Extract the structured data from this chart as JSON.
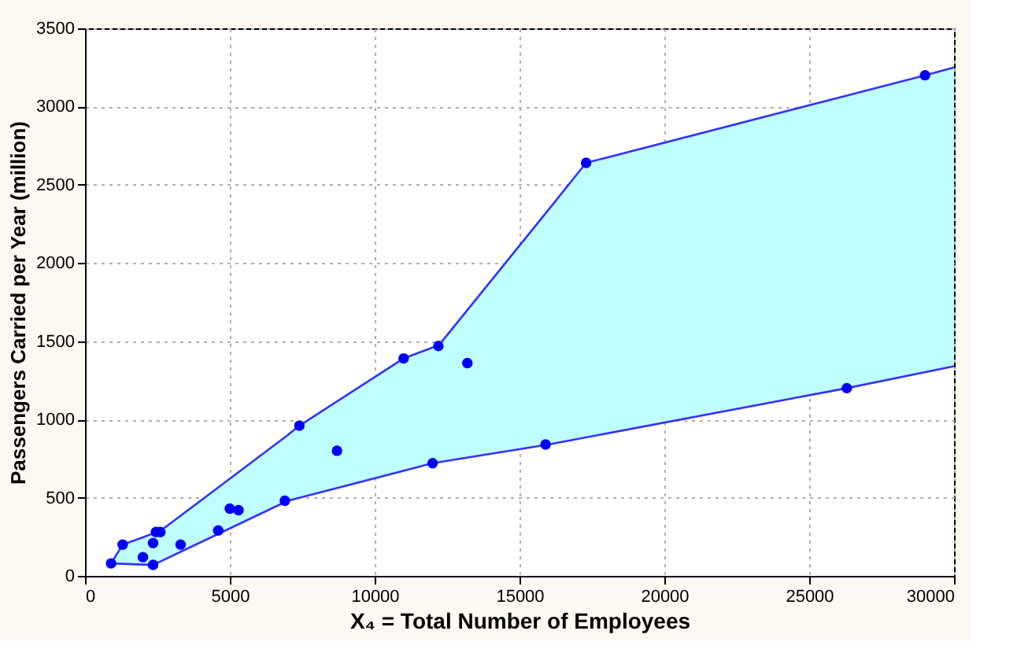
{
  "chart_data": {
    "type": "scatter",
    "xlabel": "X₄ = Total Number of Employees",
    "ylabel": "Passengers Carried per Year (million)",
    "xlim": [
      0,
      30000
    ],
    "xticks": [
      0,
      5000,
      10000,
      15000,
      20000,
      25000,
      30000
    ],
    "ylim": [
      0,
      3500
    ],
    "yticks": [
      0,
      500,
      1000,
      1500,
      2000,
      2500,
      3000,
      3500
    ],
    "grid": true,
    "line_style": "solid",
    "series": [
      {
        "type": "line",
        "color": "#3333ff",
        "marker": "none",
        "colors": [
          "#c0ffff",
          "#c0ffff",
          "#c0ffff",
          "#c0ffff",
          "#c0ffff",
          "#c0ffff",
          "#c0ffff",
          "#c0ffff",
          "#c0ffff",
          "#c0ffff",
          "#c0ffff",
          "#c0ffff",
          "#c0ffff",
          "#c0ffff"
        ],
        "x": [
          900,
          1300,
          2350,
          2550,
          7000,
          7400,
          11000,
          12000,
          12200,
          16000,
          17300,
          26300,
          29000,
          30000
        ],
        "values": [
          80,
          200,
          270,
          280,
          900,
          960,
          1390,
          1460,
          1470,
          2340,
          2640,
          3070,
          3200,
          3250
        ],
        "lower": [
          80,
          80,
          70,
          90,
          480,
          500,
          670,
          720,
          730,
          840,
          890,
          1200,
          1300,
          1340
        ],
        "upper": [
          80,
          200,
          270,
          280,
          900,
          960,
          1390,
          1460,
          1470,
          2340,
          2640,
          3070,
          3200,
          3250
        ]
      },
      {
        "type": "line",
        "color": "#3333ff",
        "marker": "none",
        "x": [
          900,
          2350,
          7000,
          12000,
          16000,
          26300,
          30000
        ],
        "values": [
          80,
          70,
          480,
          720,
          840,
          1200,
          1340
        ]
      },
      {
        "color": "#0000ff",
        "marker": "circle",
        "x": [
          900,
          1300,
          2000,
          2350,
          2350,
          2450,
          2600,
          3300,
          4600,
          5000,
          5300,
          6900,
          7400,
          8700,
          11000,
          12200,
          12000,
          13200,
          15900,
          17300,
          26300,
          29000
        ],
        "values": [
          80,
          200,
          120,
          70,
          210,
          280,
          280,
          200,
          290,
          430,
          420,
          480,
          960,
          800,
          1390,
          1470,
          720,
          1360,
          840,
          2640,
          1200,
          3200
        ]
      }
    ]
  }
}
